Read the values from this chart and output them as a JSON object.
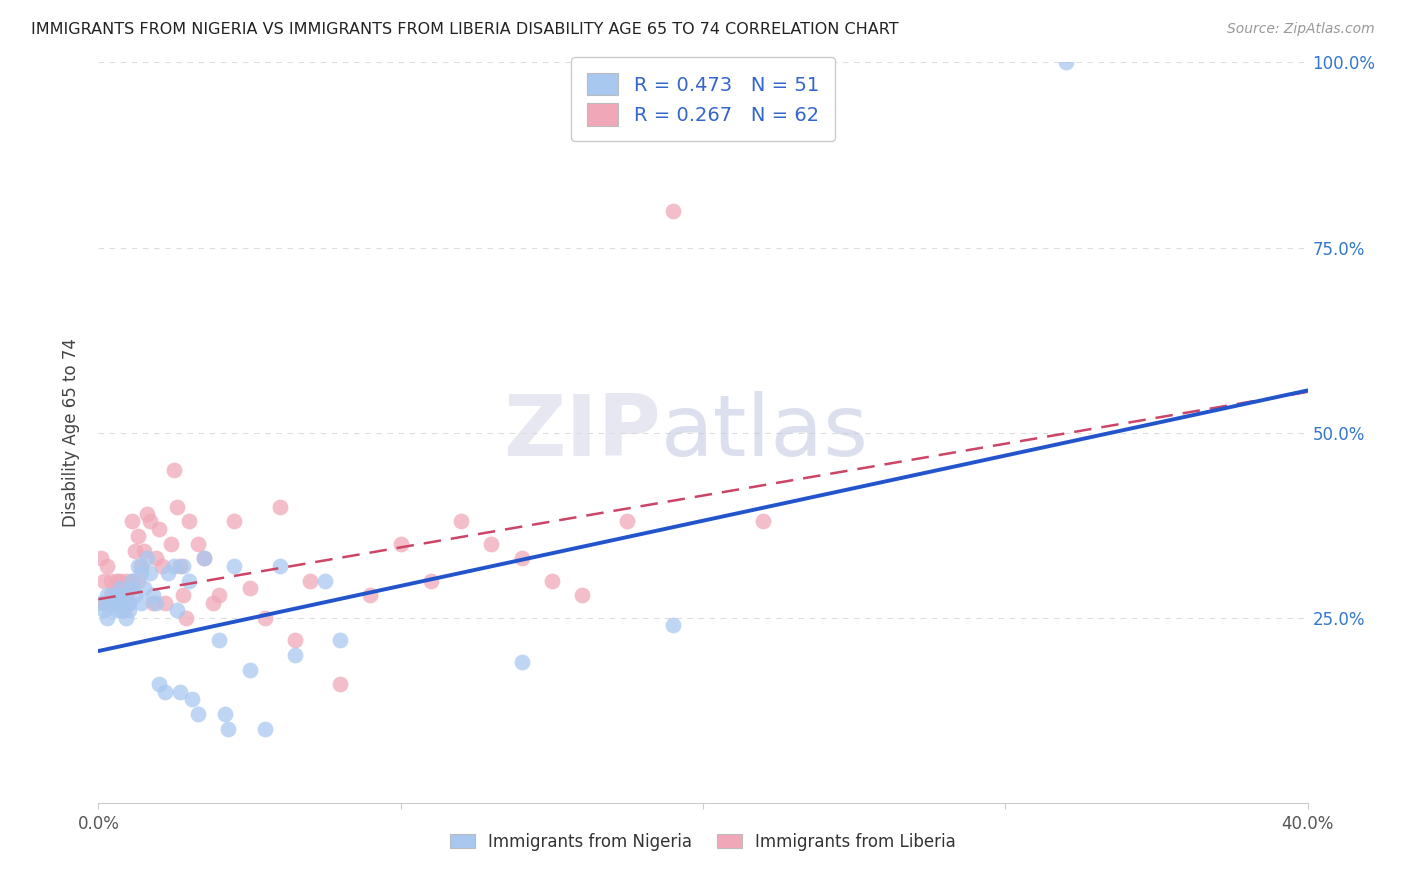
{
  "title": "IMMIGRANTS FROM NIGERIA VS IMMIGRANTS FROM LIBERIA DISABILITY AGE 65 TO 74 CORRELATION CHART",
  "source": "Source: ZipAtlas.com",
  "ylabel": "Disability Age 65 to 74",
  "xlim": [
    0.0,
    0.4
  ],
  "ylim": [
    0.0,
    1.0
  ],
  "nigeria_R": 0.473,
  "nigeria_N": 51,
  "liberia_R": 0.267,
  "liberia_N": 62,
  "nigeria_color": "#a8c8f0",
  "liberia_color": "#f0a8b8",
  "nigeria_line_color": "#2255cc",
  "liberia_line_color": "#cc4466",
  "background_color": "#ffffff",
  "grid_color": "#dddddd",
  "nigeria_intercept": 0.205,
  "nigeria_slope": 0.88,
  "liberia_intercept": 0.275,
  "liberia_slope": 0.7,
  "nigeria_x": [
    0.001,
    0.002,
    0.003,
    0.003,
    0.004,
    0.005,
    0.005,
    0.006,
    0.006,
    0.007,
    0.007,
    0.008,
    0.009,
    0.009,
    0.01,
    0.01,
    0.011,
    0.011,
    0.012,
    0.013,
    0.014,
    0.014,
    0.015,
    0.016,
    0.017,
    0.018,
    0.019,
    0.02,
    0.022,
    0.023,
    0.025,
    0.026,
    0.027,
    0.028,
    0.03,
    0.031,
    0.033,
    0.035,
    0.04,
    0.042,
    0.043,
    0.045,
    0.05,
    0.055,
    0.06,
    0.065,
    0.075,
    0.08,
    0.14,
    0.19,
    0.32
  ],
  "nigeria_y": [
    0.27,
    0.26,
    0.25,
    0.28,
    0.27,
    0.28,
    0.27,
    0.26,
    0.28,
    0.29,
    0.26,
    0.28,
    0.27,
    0.25,
    0.26,
    0.27,
    0.29,
    0.3,
    0.28,
    0.32,
    0.31,
    0.27,
    0.29,
    0.33,
    0.31,
    0.28,
    0.27,
    0.16,
    0.15,
    0.31,
    0.32,
    0.26,
    0.15,
    0.32,
    0.3,
    0.14,
    0.12,
    0.33,
    0.22,
    0.12,
    0.1,
    0.32,
    0.18,
    0.1,
    0.32,
    0.2,
    0.3,
    0.22,
    0.19,
    0.24,
    1.0
  ],
  "liberia_x": [
    0.001,
    0.002,
    0.002,
    0.003,
    0.003,
    0.004,
    0.004,
    0.005,
    0.005,
    0.006,
    0.006,
    0.007,
    0.007,
    0.008,
    0.008,
    0.009,
    0.009,
    0.01,
    0.01,
    0.011,
    0.011,
    0.012,
    0.013,
    0.013,
    0.014,
    0.015,
    0.016,
    0.017,
    0.018,
    0.019,
    0.02,
    0.021,
    0.022,
    0.024,
    0.025,
    0.026,
    0.027,
    0.028,
    0.029,
    0.03,
    0.033,
    0.035,
    0.038,
    0.04,
    0.045,
    0.05,
    0.055,
    0.06,
    0.065,
    0.07,
    0.08,
    0.09,
    0.1,
    0.11,
    0.12,
    0.13,
    0.14,
    0.15,
    0.16,
    0.175,
    0.19,
    0.22
  ],
  "liberia_y": [
    0.33,
    0.27,
    0.3,
    0.27,
    0.32,
    0.28,
    0.3,
    0.27,
    0.28,
    0.29,
    0.3,
    0.27,
    0.3,
    0.26,
    0.29,
    0.28,
    0.3,
    0.27,
    0.29,
    0.38,
    0.3,
    0.34,
    0.3,
    0.36,
    0.32,
    0.34,
    0.39,
    0.38,
    0.27,
    0.33,
    0.37,
    0.32,
    0.27,
    0.35,
    0.45,
    0.4,
    0.32,
    0.28,
    0.25,
    0.38,
    0.35,
    0.33,
    0.27,
    0.28,
    0.38,
    0.29,
    0.25,
    0.4,
    0.22,
    0.3,
    0.16,
    0.28,
    0.35,
    0.3,
    0.38,
    0.35,
    0.33,
    0.3,
    0.28,
    0.38,
    0.8,
    0.38
  ],
  "legend_labels": [
    "Immigrants from Nigeria",
    "Immigrants from Liberia"
  ],
  "watermark_zip": "ZIP",
  "watermark_atlas": "atlas"
}
